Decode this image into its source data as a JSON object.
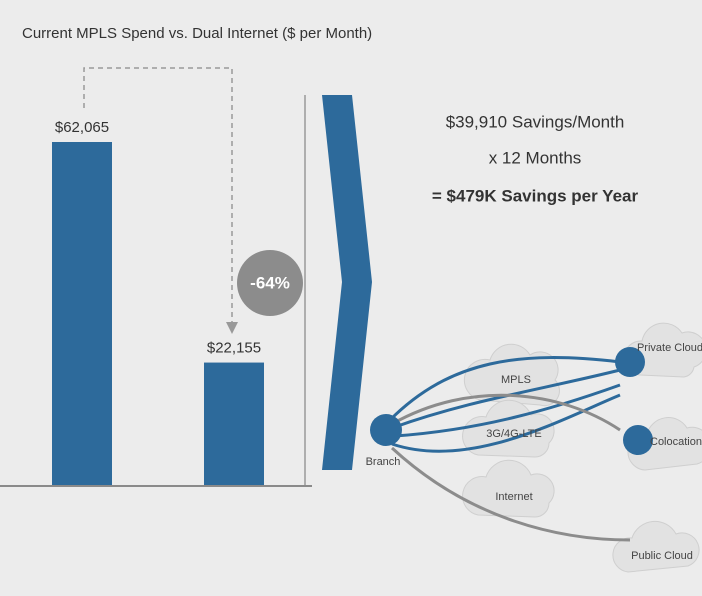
{
  "chart_data": {
    "type": "bar",
    "title": "Current MPLS Spend vs. Dual Internet ($ per Month)",
    "categories": [
      null,
      null
    ],
    "values": [
      62065,
      22155
    ],
    "value_labels": [
      "$62,065",
      "$22,155"
    ],
    "color": "#2d6a9b",
    "annotation": "-64%"
  },
  "savings": {
    "lines": [
      "$39,910 Savings/Month",
      "x 12 Months",
      "= $479K Savings per Year"
    ]
  },
  "diagram": {
    "branch": "Branch",
    "links": [
      "MPLS",
      "3G/4G-LTE",
      "Internet"
    ],
    "destinations": [
      "Private Cloud",
      "Colocation",
      "Public Cloud"
    ]
  }
}
